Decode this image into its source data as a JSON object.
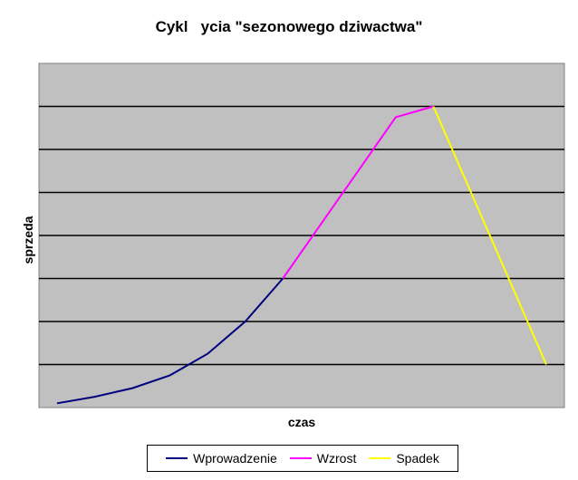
{
  "chart_data": {
    "type": "line",
    "title": "Cykl   ycia \"sezonowego dziwactwa\"",
    "xlabel": "czas",
    "ylabel": "sprzeda",
    "grid": true,
    "xlim": [
      0,
      13
    ],
    "ylim": [
      0,
      8
    ],
    "legend_position": "bottom",
    "series": [
      {
        "name": "Wprowadzenie",
        "color": "#00007f",
        "x": [
          0,
          1,
          2,
          3,
          4,
          5,
          6
        ],
        "y": [
          0.1,
          0.25,
          0.45,
          0.75,
          1.25,
          2.0,
          3.0
        ]
      },
      {
        "name": "Wzrost",
        "color": "#ff00ff",
        "x": [
          6,
          7,
          8,
          9,
          10
        ],
        "y": [
          3.0,
          4.25,
          5.5,
          6.75,
          7.0
        ]
      },
      {
        "name": "Spadek",
        "color": "#ffff00",
        "x": [
          10,
          11,
          12,
          13
        ],
        "y": [
          7.0,
          5.0,
          3.0,
          1.0
        ]
      }
    ],
    "plot_background": "#c0c0c0",
    "gridline_color": "#000000"
  }
}
